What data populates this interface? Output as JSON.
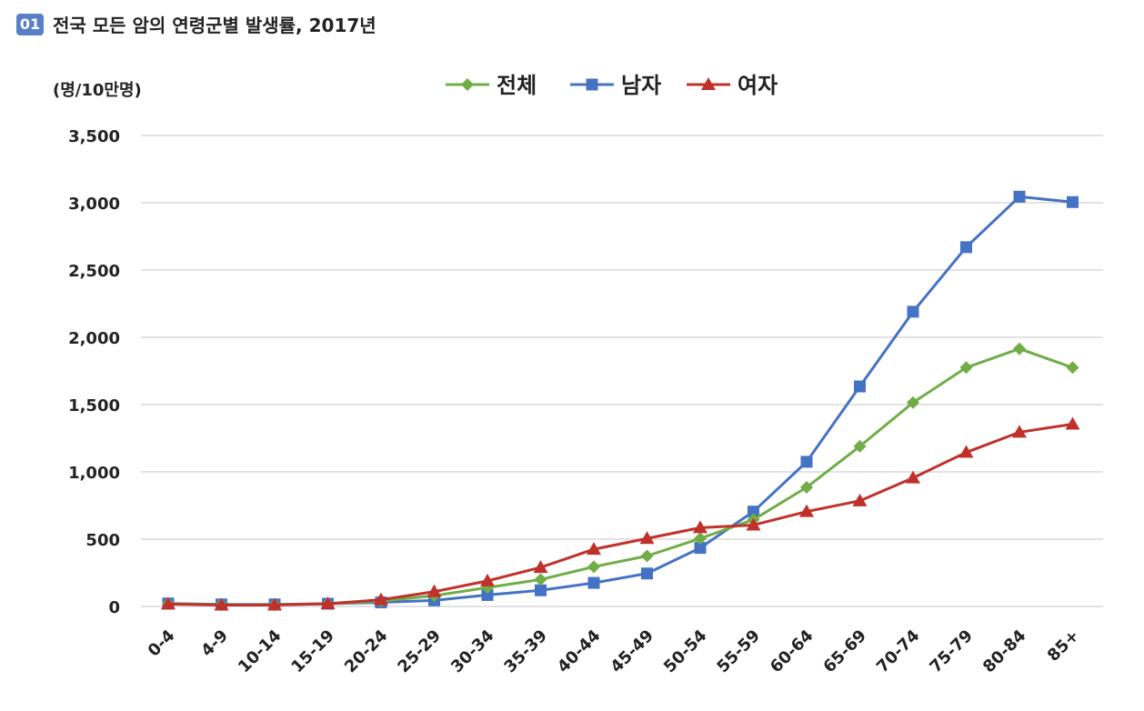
{
  "header": {
    "badge": "01",
    "title": "전국 모든 암의 연령군별 발생률, 2017년"
  },
  "chart_data": {
    "type": "line",
    "title": "전국 모든 암의 연령군별 발생률, 2017년",
    "ylabel": "(명/10만명)",
    "xlabel": "",
    "ylim": [
      0,
      3500
    ],
    "yticks": [
      0,
      500,
      1000,
      1500,
      2000,
      2500,
      3000,
      3500
    ],
    "ytick_labels": [
      "0",
      "500",
      "1,000",
      "1,500",
      "2,000",
      "2,500",
      "3,000",
      "3,500"
    ],
    "grid": true,
    "legend_position": "top-center",
    "categories": [
      "0-4",
      "4-9",
      "10-14",
      "15-19",
      "20-24",
      "25-29",
      "30-34",
      "35-39",
      "40-44",
      "45-49",
      "50-54",
      "55-59",
      "60-64",
      "65-69",
      "70-74",
      "75-79",
      "80-84",
      "85+"
    ],
    "series": [
      {
        "name": "전체",
        "color": "#70ad47",
        "marker": "diamond",
        "values": [
          20,
          12,
          12,
          20,
          40,
          80,
          140,
          200,
          295,
          375,
          505,
          645,
          885,
          1190,
          1515,
          1775,
          1915,
          1775
        ]
      },
      {
        "name": "남자",
        "color": "#4472c4",
        "marker": "square",
        "values": [
          22,
          15,
          15,
          20,
          30,
          45,
          85,
          120,
          175,
          245,
          435,
          705,
          1075,
          1635,
          2190,
          2670,
          3045,
          3005
        ]
      },
      {
        "name": "여자",
        "color": "#c0312b",
        "marker": "triangle",
        "values": [
          18,
          10,
          10,
          20,
          50,
          110,
          190,
          290,
          425,
          505,
          585,
          605,
          705,
          785,
          955,
          1145,
          1295,
          1355
        ]
      }
    ]
  }
}
